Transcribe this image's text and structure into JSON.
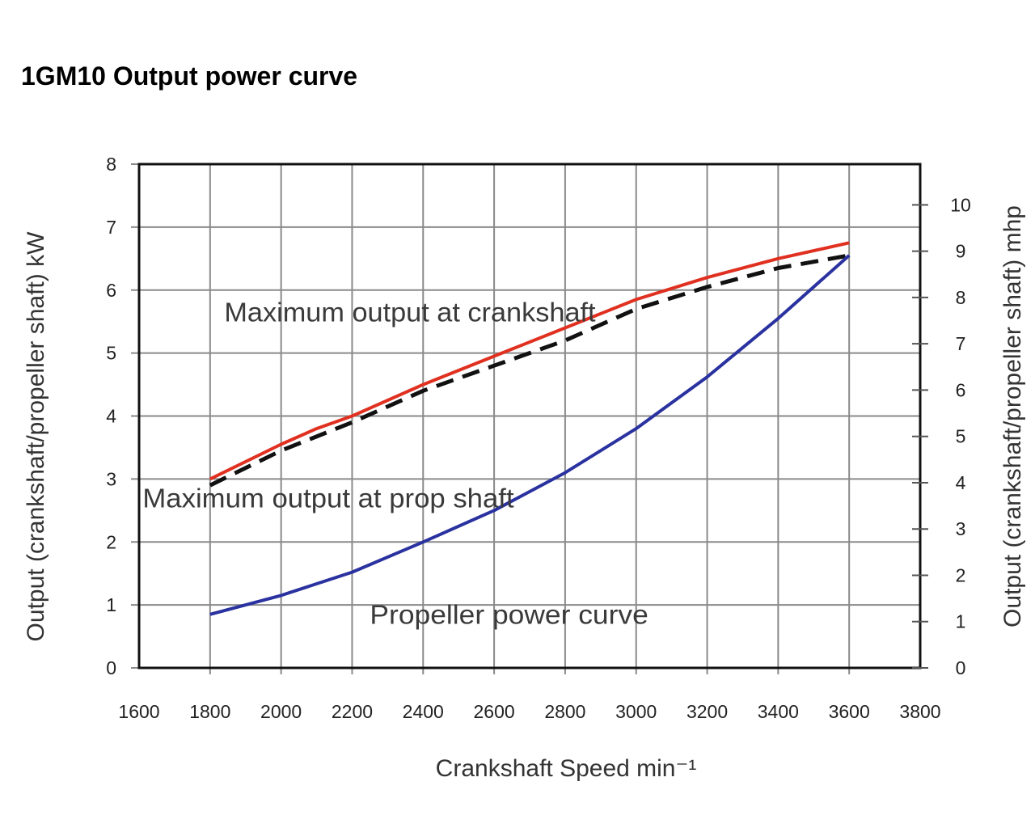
{
  "chart_data": {
    "type": "line",
    "title": "1GM10 Output power curve",
    "xlabel": "Crankshaft Speed min⁻¹",
    "ylabel": "Output (crankshaft/propeller shaft) kW",
    "y2label": "Output (crankshaft/propeller shaft) mhp",
    "xlim": [
      1600,
      3800
    ],
    "ylim": [
      0,
      8
    ],
    "y2lim": [
      0,
      10.88
    ],
    "grid": true,
    "x_ticks": [
      "1600",
      "1800",
      "2000",
      "2200",
      "2400",
      "2600",
      "2800",
      "3000",
      "3200",
      "3400",
      "3600",
      "3800"
    ],
    "y_ticks": [
      "0",
      "1",
      "2",
      "3",
      "4",
      "5",
      "6",
      "7",
      "8"
    ],
    "y2_ticks": [
      "0",
      "1",
      "2",
      "3",
      "4",
      "5",
      "6",
      "7",
      "8",
      "9",
      "10"
    ],
    "series": [
      {
        "name": "Maximum output at crankshaft",
        "color": "#e03020",
        "style": "solid",
        "x": [
          1800,
          2000,
          2100,
          2200,
          2400,
          2600,
          2800,
          3000,
          3200,
          3400,
          3600
        ],
        "values": [
          3.0,
          3.55,
          3.8,
          4.0,
          4.5,
          4.95,
          5.4,
          5.85,
          6.2,
          6.5,
          6.75
        ]
      },
      {
        "name": "Maximum output at prop shaft",
        "color": "#111111",
        "style": "dashed",
        "x": [
          1800,
          2000,
          2200,
          2400,
          2600,
          2800,
          3000,
          3200,
          3400,
          3600
        ],
        "values": [
          2.9,
          3.45,
          3.9,
          4.4,
          4.8,
          5.2,
          5.7,
          6.05,
          6.35,
          6.55
        ]
      },
      {
        "name": "Propeller power curve",
        "color": "#2a32a0",
        "style": "solid",
        "x": [
          1800,
          2000,
          2200,
          2400,
          2600,
          2800,
          3000,
          3200,
          3400,
          3600
        ],
        "values": [
          0.85,
          1.15,
          1.52,
          2.0,
          2.5,
          3.1,
          3.8,
          4.62,
          5.55,
          6.55
        ]
      }
    ],
    "annotations": [
      {
        "text": "Maximum output at crankshaft",
        "x": 1840,
        "y": 5.5
      },
      {
        "text": "Maximum output at prop shaft",
        "x": 1610,
        "y": 2.55
      },
      {
        "text": "Propeller power curve",
        "x": 2250,
        "y": 0.7
      }
    ]
  }
}
